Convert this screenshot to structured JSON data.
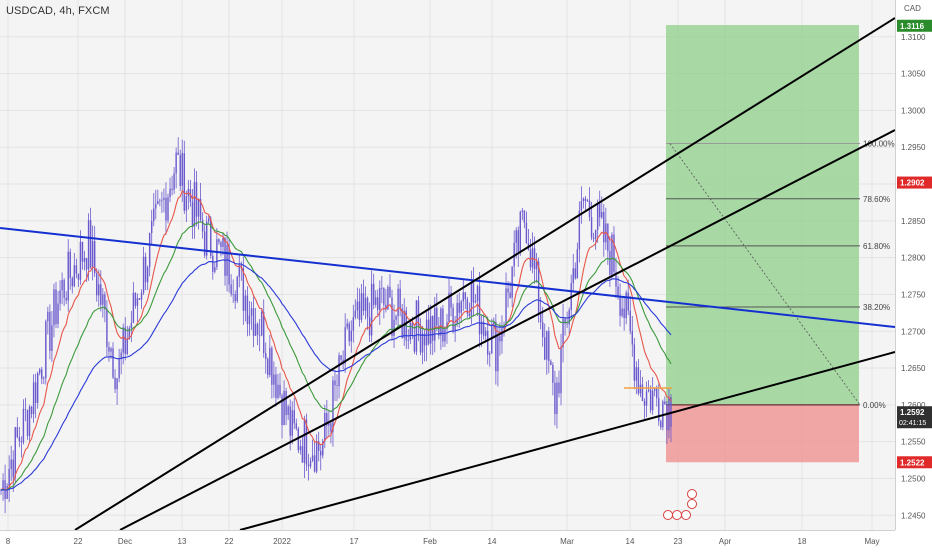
{
  "header": {
    "symbol_title": "USDCAD, 4h, FXCM"
  },
  "currency": "CAD",
  "colors": {
    "candle": "#6a5acd",
    "ema_fast": "#e8564a",
    "ema_mid": "#3c9a3c",
    "ema_slow": "#2a3ad8",
    "trendline_blue": "#1530d0",
    "trendline_black": "#000000",
    "profit_zone": "#8fcf8a",
    "loss_zone": "#f08c8c",
    "tag_green": "#2a8c2a",
    "tag_red": "#e02a2a",
    "tag_dark": "#303030"
  },
  "chart_data": {
    "type": "line",
    "title": "USDCAD, 4h, FXCM",
    "y_axis_ticks": [
      "1.3100",
      "1.3050",
      "1.3000",
      "1.2950",
      "1.2900",
      "1.2850",
      "1.2800",
      "1.2750",
      "1.2700",
      "1.2650",
      "1.2600",
      "1.2550",
      "1.2500",
      "1.2450"
    ],
    "y_range": [
      1.243,
      1.315
    ],
    "x_axis_ticks": [
      "8",
      "22",
      "Dec",
      "13",
      "22",
      "2022",
      "17",
      "Feb",
      "14",
      "Mar",
      "14",
      "23",
      "Apr",
      "18",
      "May"
    ],
    "series": [
      {
        "name": "",
        "values": [
          1.2485,
          1.26,
          1.275,
          1.282,
          1.264,
          1.28,
          1.293,
          1.283,
          1.278,
          1.27,
          1.256,
          1.254,
          1.27,
          1.274,
          1.271,
          1.27,
          1.276,
          1.268,
          1.286,
          1.26,
          1.288,
          1.28,
          1.262,
          1.26
        ]
      }
    ],
    "fibonacci_levels": [
      {
        "label": "100.00%",
        "price": 1.2955
      },
      {
        "label": "78.60%",
        "price": 1.288
      },
      {
        "label": "61.80%",
        "price": 1.2816
      },
      {
        "label": "38.20%",
        "price": 1.2733
      },
      {
        "label": "0.00%",
        "price": 1.26
      }
    ],
    "price_tags": [
      {
        "label": "1.3116",
        "price": 1.3115,
        "color": "#2a8c2a"
      },
      {
        "label": "1.2902",
        "price": 1.2902,
        "color": "#e02a2a"
      },
      {
        "label": "1.2592",
        "sub": "02:41:15",
        "price": 1.259,
        "color": "#303030"
      },
      {
        "label": "1.2522",
        "price": 1.2522,
        "color": "#e02a2a"
      }
    ],
    "position": {
      "target": 1.3116,
      "entry": 1.26,
      "stop": 1.2522
    }
  }
}
